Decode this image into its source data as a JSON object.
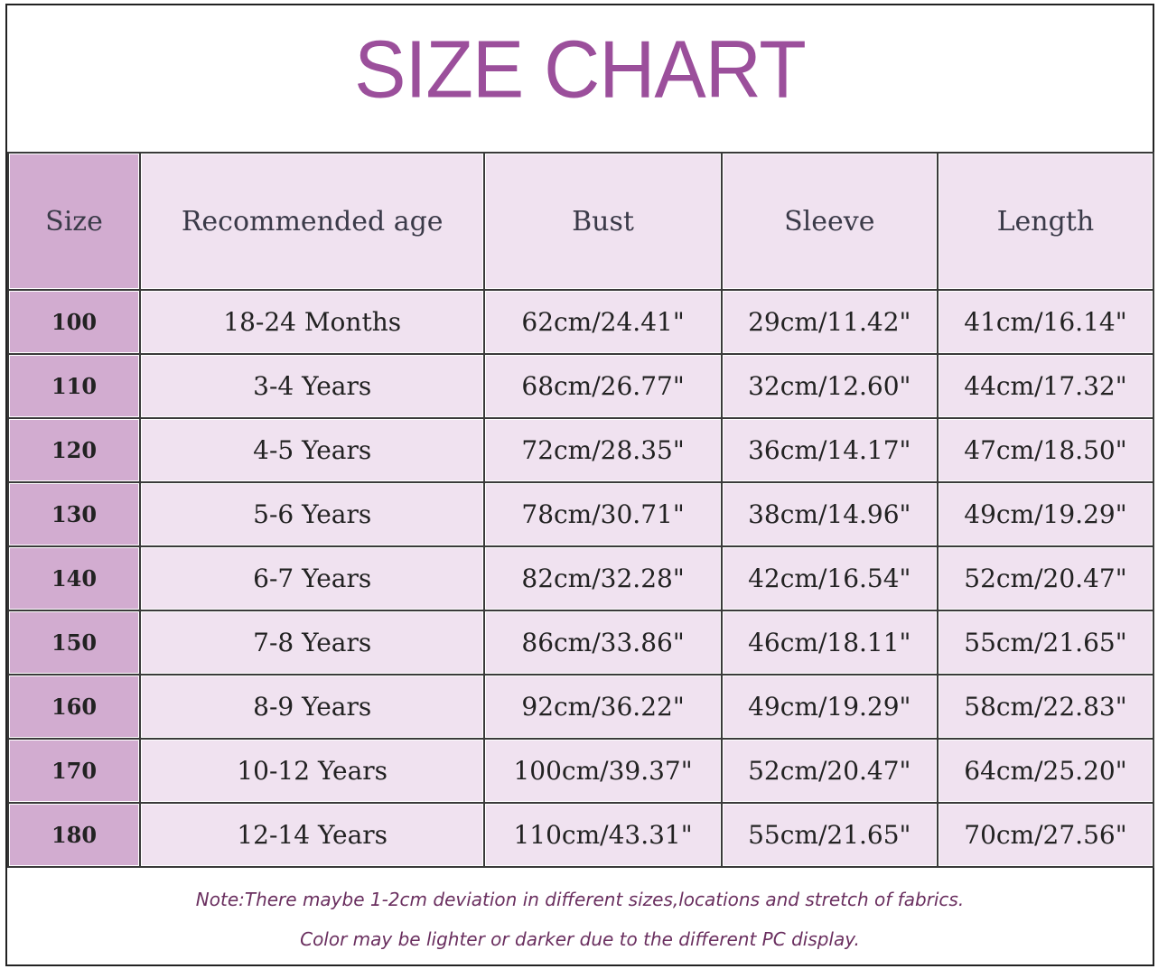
{
  "title": "SIZE CHART",
  "table": {
    "headers": [
      "Size",
      "Recommended age",
      "Bust",
      "Sleeve",
      "Length"
    ],
    "rows": [
      [
        "100",
        "18-24 Months",
        "62cm/24.41\"",
        "29cm/11.42\"",
        "41cm/16.14\""
      ],
      [
        "110",
        "3-4 Years",
        "68cm/26.77\"",
        "32cm/12.60\"",
        "44cm/17.32\""
      ],
      [
        "120",
        "4-5 Years",
        "72cm/28.35\"",
        "36cm/14.17\"",
        "47cm/18.50\""
      ],
      [
        "130",
        "5-6 Years",
        "78cm/30.71\"",
        "38cm/14.96\"",
        "49cm/19.29\""
      ],
      [
        "140",
        "6-7 Years",
        "82cm/32.28\"",
        "42cm/16.54\"",
        "52cm/20.47\""
      ],
      [
        "150",
        "7-8 Years",
        "86cm/33.86\"",
        "46cm/18.11\"",
        "55cm/21.65\""
      ],
      [
        "160",
        "8-9 Years",
        "92cm/36.22\"",
        "49cm/19.29\"",
        "58cm/22.83\""
      ],
      [
        "170",
        "10-12 Years",
        "100cm/39.37\"",
        "52cm/20.47\"",
        "64cm/25.20\""
      ],
      [
        "180",
        "12-14 Years",
        "110cm/43.31\"",
        "55cm/21.65\"",
        "70cm/27.56\""
      ]
    ]
  },
  "notes": [
    "Note:There maybe 1-2cm deviation in different sizes,locations and stretch of fabrics.",
    "Color may be lighter or darker due to the different PC display."
  ],
  "colors": {
    "title": "#9b4f9b",
    "size_column": "#d2acd0",
    "cell": "#f0e2f0",
    "note": "#6a2f5f"
  }
}
